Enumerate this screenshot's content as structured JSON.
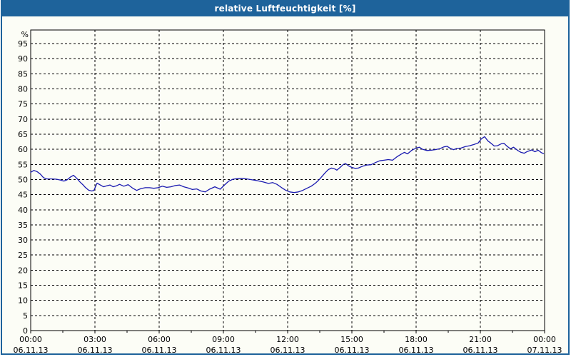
{
  "window": {
    "title": "relative Luftfeuchtigkeit [%]",
    "titlebar_color": "#1e639b",
    "border_color": "#1e639b",
    "background_color": "#fcfdf6"
  },
  "chart_data": {
    "type": "line",
    "title": "relative Luftfeuchtigkeit [%]",
    "xlabel": "",
    "ylabel": "%",
    "ylim": [
      0,
      99.5
    ],
    "ytick_step": 5,
    "yticks": [
      0,
      5,
      10,
      15,
      20,
      25,
      30,
      35,
      40,
      45,
      50,
      55,
      60,
      65,
      70,
      75,
      80,
      85,
      90,
      95
    ],
    "xlim_hours": [
      0,
      24
    ],
    "grid": "dashed",
    "legend": "none",
    "line_color": "#1a1ab0",
    "xticks": [
      {
        "t": 0,
        "time": "00:00",
        "date": "06.11.13"
      },
      {
        "t": 3,
        "time": "03:00",
        "date": "06.11.13"
      },
      {
        "t": 6,
        "time": "06:00",
        "date": "06.11.13"
      },
      {
        "t": 9,
        "time": "09:00",
        "date": "06.11.13"
      },
      {
        "t": 12,
        "time": "12:00",
        "date": "06.11.13"
      },
      {
        "t": 15,
        "time": "15:00",
        "date": "06.11.13"
      },
      {
        "t": 18,
        "time": "18:00",
        "date": "06.11.13"
      },
      {
        "t": 21,
        "time": "21:00",
        "date": "06.11.13"
      },
      {
        "t": 24,
        "time": "00:00",
        "date": "07.11.13"
      }
    ],
    "minor_xtick_interval_hours": 1.5,
    "series": [
      {
        "name": "relative Luftfeuchtigkeit",
        "points": [
          [
            0.0,
            52.4
          ],
          [
            0.15,
            53.0
          ],
          [
            0.3,
            52.6
          ],
          [
            0.45,
            51.8
          ],
          [
            0.6,
            50.6
          ],
          [
            0.75,
            50.2
          ],
          [
            1.0,
            50.2
          ],
          [
            1.2,
            50.1
          ],
          [
            1.4,
            49.8
          ],
          [
            1.55,
            49.5
          ],
          [
            1.7,
            49.9
          ],
          [
            1.85,
            50.8
          ],
          [
            2.0,
            51.4
          ],
          [
            2.15,
            50.4
          ],
          [
            2.3,
            49.2
          ],
          [
            2.45,
            48.2
          ],
          [
            2.55,
            47.4
          ],
          [
            2.7,
            46.5
          ],
          [
            2.85,
            46.2
          ],
          [
            2.95,
            46.4
          ],
          [
            3.05,
            48.0
          ],
          [
            3.1,
            48.8
          ],
          [
            3.25,
            48.2
          ],
          [
            3.4,
            47.6
          ],
          [
            3.55,
            47.9
          ],
          [
            3.7,
            48.2
          ],
          [
            3.85,
            47.6
          ],
          [
            4.0,
            47.9
          ],
          [
            4.15,
            48.4
          ],
          [
            4.35,
            47.8
          ],
          [
            4.55,
            48.3
          ],
          [
            4.75,
            47.2
          ],
          [
            4.95,
            46.4
          ],
          [
            5.15,
            47.0
          ],
          [
            5.35,
            47.3
          ],
          [
            5.55,
            47.3
          ],
          [
            5.75,
            47.1
          ],
          [
            5.95,
            47.3
          ],
          [
            6.15,
            47.8
          ],
          [
            6.35,
            47.4
          ],
          [
            6.55,
            47.6
          ],
          [
            6.75,
            48.0
          ],
          [
            6.95,
            48.2
          ],
          [
            7.15,
            47.6
          ],
          [
            7.35,
            47.2
          ],
          [
            7.55,
            46.7
          ],
          [
            7.75,
            46.9
          ],
          [
            7.95,
            46.2
          ],
          [
            8.15,
            45.9
          ],
          [
            8.35,
            46.8
          ],
          [
            8.6,
            47.6
          ],
          [
            8.85,
            46.8
          ],
          [
            9.05,
            48.2
          ],
          [
            9.25,
            49.5
          ],
          [
            9.45,
            50.1
          ],
          [
            9.65,
            50.3
          ],
          [
            9.85,
            50.4
          ],
          [
            10.1,
            50.2
          ],
          [
            10.35,
            49.9
          ],
          [
            10.6,
            49.6
          ],
          [
            10.85,
            49.2
          ],
          [
            11.1,
            48.7
          ],
          [
            11.3,
            49.0
          ],
          [
            11.5,
            48.4
          ],
          [
            11.7,
            47.4
          ],
          [
            11.9,
            46.5
          ],
          [
            12.1,
            45.9
          ],
          [
            12.3,
            45.7
          ],
          [
            12.5,
            45.9
          ],
          [
            12.7,
            46.4
          ],
          [
            12.9,
            47.1
          ],
          [
            13.1,
            47.8
          ],
          [
            13.3,
            48.8
          ],
          [
            13.45,
            49.8
          ],
          [
            13.6,
            51.0
          ],
          [
            13.75,
            52.2
          ],
          [
            13.9,
            53.3
          ],
          [
            14.05,
            53.8
          ],
          [
            14.2,
            53.5
          ],
          [
            14.3,
            53.1
          ],
          [
            14.45,
            54.0
          ],
          [
            14.6,
            55.0
          ],
          [
            14.7,
            55.3
          ],
          [
            14.85,
            54.5
          ],
          [
            15.0,
            54.0
          ],
          [
            15.15,
            53.7
          ],
          [
            15.3,
            53.8
          ],
          [
            15.5,
            54.4
          ],
          [
            15.7,
            54.8
          ],
          [
            15.9,
            54.9
          ],
          [
            16.1,
            55.6
          ],
          [
            16.3,
            56.2
          ],
          [
            16.5,
            56.4
          ],
          [
            16.7,
            56.6
          ],
          [
            16.9,
            56.4
          ],
          [
            17.1,
            57.5
          ],
          [
            17.3,
            58.4
          ],
          [
            17.45,
            59.0
          ],
          [
            17.6,
            58.5
          ],
          [
            17.8,
            59.7
          ],
          [
            18.0,
            60.4
          ],
          [
            18.15,
            60.7
          ],
          [
            18.3,
            60.0
          ],
          [
            18.5,
            59.6
          ],
          [
            18.7,
            59.7
          ],
          [
            18.9,
            59.9
          ],
          [
            19.1,
            60.2
          ],
          [
            19.3,
            60.8
          ],
          [
            19.45,
            61.0
          ],
          [
            19.6,
            60.3
          ],
          [
            19.75,
            59.9
          ],
          [
            19.9,
            60.3
          ],
          [
            20.1,
            60.4
          ],
          [
            20.3,
            60.9
          ],
          [
            20.5,
            61.2
          ],
          [
            20.7,
            61.6
          ],
          [
            20.9,
            62.1
          ],
          [
            21.05,
            63.5
          ],
          [
            21.2,
            64.2
          ],
          [
            21.35,
            62.8
          ],
          [
            21.5,
            62.0
          ],
          [
            21.65,
            61.1
          ],
          [
            21.8,
            61.2
          ],
          [
            22.0,
            61.9
          ],
          [
            22.1,
            62.0
          ],
          [
            22.25,
            61.0
          ],
          [
            22.4,
            60.2
          ],
          [
            22.55,
            60.7
          ],
          [
            22.75,
            59.6
          ],
          [
            22.9,
            59.0
          ],
          [
            23.05,
            58.7
          ],
          [
            23.2,
            59.3
          ],
          [
            23.4,
            59.8
          ],
          [
            23.55,
            59.2
          ],
          [
            23.7,
            59.7
          ],
          [
            23.85,
            58.9
          ],
          [
            23.95,
            58.6
          ]
        ]
      }
    ]
  }
}
